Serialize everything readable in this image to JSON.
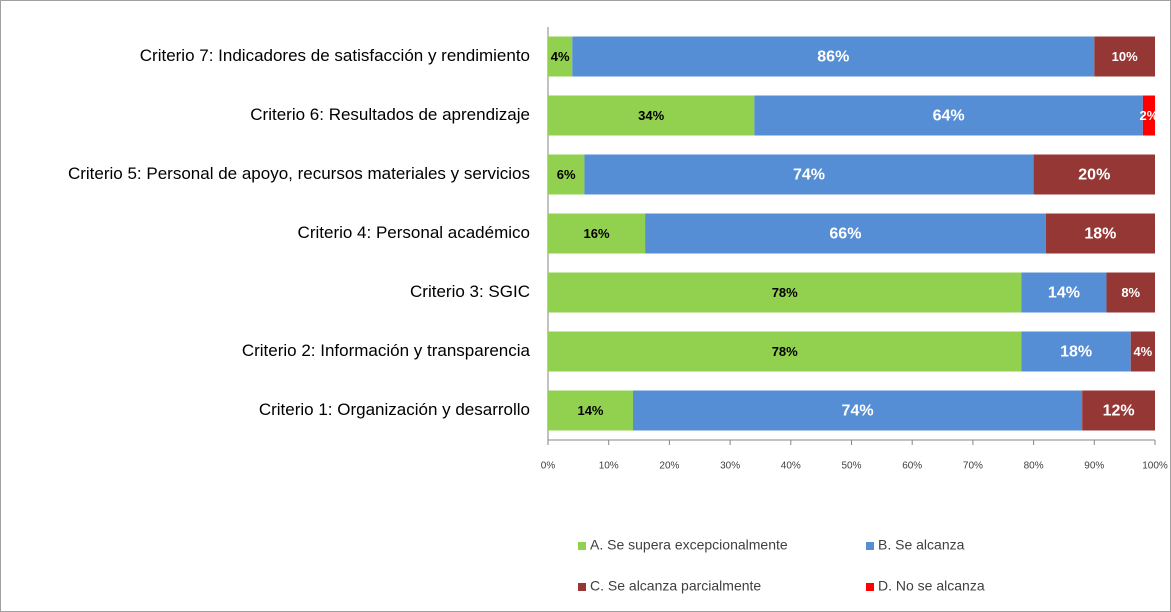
{
  "chart_data": {
    "type": "stacked-bar-horizontal",
    "categories": [
      "Criterio 7: Indicadores de satisfacción y rendimiento",
      "Criterio 6: Resultados de aprendizaje",
      "Criterio 5: Personal de apoyo, recursos materiales y servicios",
      "Criterio 4: Personal académico",
      "Criterio 3: SGIC",
      "Criterio 2: Información y transparencia",
      "Criterio 1: Organización y desarrollo"
    ],
    "series": [
      {
        "name": "A. Se supera excepcionalmente",
        "color": "#92d050",
        "label_color": "#000000",
        "values": [
          4,
          34,
          6,
          16,
          78,
          78,
          14
        ],
        "value_labels": [
          "4%",
          "34%",
          "6%",
          "16%",
          "78%",
          "78%",
          "14%"
        ]
      },
      {
        "name": "B. Se alcanza",
        "color": "#558ed5",
        "label_color": "#ffffff",
        "values": [
          86,
          64,
          74,
          66,
          14,
          18,
          74
        ],
        "value_labels": [
          "86%",
          "64%",
          "74%",
          "66%",
          "14%",
          "18%",
          "74%"
        ]
      },
      {
        "name": "C. Se alcanza parcialmente",
        "color": "#953735",
        "label_color": "#ffffff",
        "values": [
          10,
          0,
          20,
          18,
          8,
          4,
          12
        ],
        "value_labels": [
          "10%",
          null,
          "20%",
          "18%",
          "8%",
          "4%",
          "12%"
        ]
      },
      {
        "name": "D. No se alcanza",
        "color": "#ff0000",
        "label_color": "#ffffff",
        "values": [
          0,
          2,
          0,
          0,
          0,
          0,
          0
        ],
        "value_labels": [
          null,
          "2%",
          null,
          null,
          null,
          null,
          null
        ]
      }
    ],
    "xlim": [
      0,
      100
    ],
    "xticks": [
      {
        "value": 0,
        "label": "0%"
      },
      {
        "value": 10,
        "label": "10%"
      },
      {
        "value": 20,
        "label": "20%"
      },
      {
        "value": 30,
        "label": "30%"
      },
      {
        "value": 40,
        "label": "40%"
      },
      {
        "value": 50,
        "label": "50%"
      },
      {
        "value": 60,
        "label": "60%"
      },
      {
        "value": 70,
        "label": "70%"
      },
      {
        "value": 80,
        "label": "80%"
      },
      {
        "value": 90,
        "label": "90%"
      },
      {
        "value": 100,
        "label": "100%"
      }
    ],
    "grid": false
  }
}
